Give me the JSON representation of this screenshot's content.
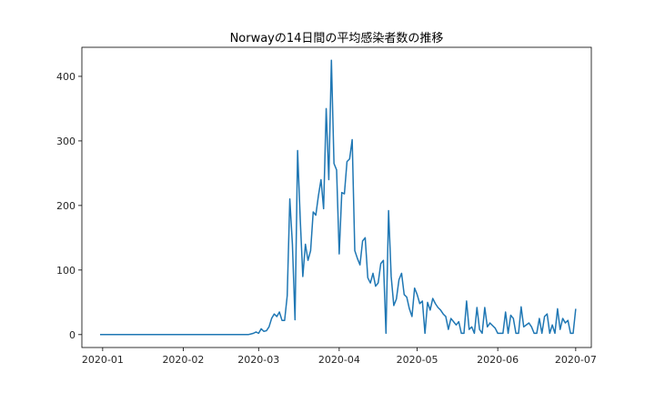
{
  "chart_data": {
    "type": "line",
    "title": "Norwayの14日間の平均感染者数の推移",
    "xlabel": "",
    "ylabel": "",
    "x_start": "2019-12-31",
    "x_end": "2020-06-30",
    "xlim": [
      "2019-12-24",
      "2020-07-07"
    ],
    "ylim": [
      -20,
      445
    ],
    "x_ticks": [
      "2020-01-01",
      "2020-02-01",
      "2020-03-01",
      "2020-04-01",
      "2020-05-01",
      "2020-06-01",
      "2020-07-01"
    ],
    "x_tick_labels": [
      "2020-01",
      "2020-02",
      "2020-03",
      "2020-04",
      "2020-05",
      "2020-06",
      "2020-07"
    ],
    "y_ticks": [
      0,
      100,
      200,
      300,
      400
    ],
    "y_tick_labels": [
      "0",
      "100",
      "200",
      "300",
      "400"
    ],
    "line_color": "#1f77b4",
    "grid": false,
    "legend": "none",
    "series": [
      {
        "values": [
          0,
          0,
          0,
          0,
          0,
          0,
          0,
          0,
          0,
          0,
          0,
          0,
          0,
          0,
          0,
          0,
          0,
          0,
          0,
          0,
          0,
          0,
          0,
          0,
          0,
          0,
          0,
          0,
          0,
          0,
          0,
          0,
          0,
          0,
          0,
          0,
          0,
          0,
          0,
          0,
          0,
          0,
          0,
          0,
          0,
          0,
          0,
          0,
          0,
          0,
          0,
          0,
          0,
          0,
          0,
          0,
          0,
          0,
          1,
          2,
          4,
          2,
          9,
          5,
          6,
          12,
          25,
          32,
          28,
          35,
          22,
          22,
          60,
          210,
          140,
          23,
          285,
          180,
          90,
          140,
          115,
          130,
          190,
          185,
          215,
          240,
          195,
          350,
          240,
          425,
          265,
          255,
          125,
          220,
          218,
          268,
          272,
          302,
          130,
          118,
          108,
          145,
          150,
          88,
          80,
          95,
          75,
          80,
          110,
          115,
          2,
          192,
          90,
          45,
          55,
          85,
          95,
          62,
          58,
          40,
          28,
          72,
          62,
          48,
          52,
          2,
          50,
          38,
          56,
          48,
          42,
          38,
          32,
          28,
          8,
          25,
          20,
          15,
          20,
          2,
          2,
          52,
          8,
          12,
          2,
          42,
          8,
          2,
          42,
          12,
          18,
          14,
          10,
          2,
          2,
          2,
          35,
          2,
          30,
          25,
          2,
          2,
          43,
          12,
          15,
          18,
          12,
          2,
          2,
          25,
          2,
          28,
          32,
          2,
          15,
          2,
          40,
          8,
          25,
          18,
          22,
          2,
          2,
          40
        ]
      }
    ]
  }
}
